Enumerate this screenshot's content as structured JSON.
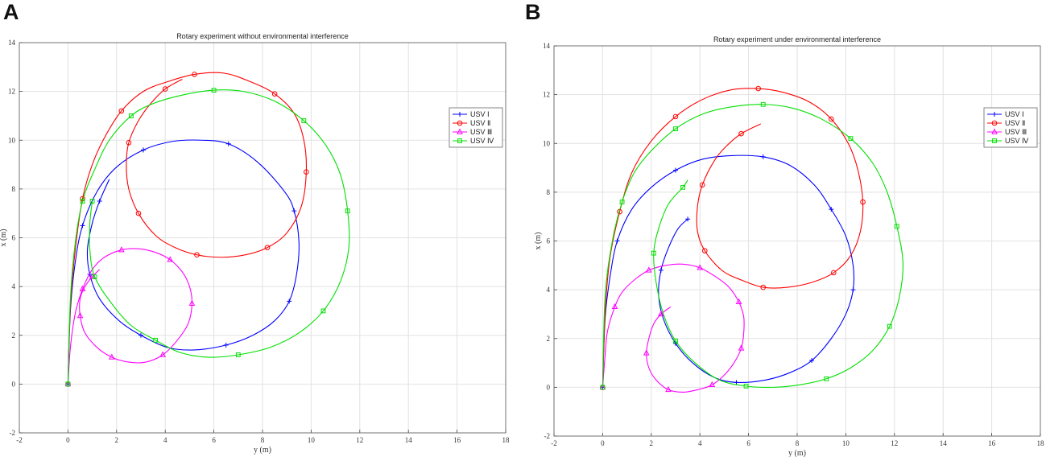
{
  "panels": [
    "A",
    "B"
  ],
  "chart_data": [
    {
      "type": "line",
      "title": "Rotary experiment without environmental interference",
      "xlabel": "y (m)",
      "ylabel": "x (m)",
      "xlim": [
        -2,
        18
      ],
      "ylim": [
        -2,
        14
      ],
      "xticks": [
        "-2",
        "0",
        "2",
        "4",
        "6",
        "8",
        "10",
        "12",
        "14",
        "16",
        "18"
      ],
      "yticks": [
        "-2",
        "0",
        "2",
        "4",
        "6",
        "8",
        "10",
        "12",
        "14"
      ],
      "grid": true,
      "legend_position": "right",
      "series": [
        {
          "name": "USV Ⅰ",
          "color": "#0000ff",
          "marker": "plus",
          "values": [
            [
              0,
              0
            ],
            [
              0.1,
              3
            ],
            [
              0.3,
              5
            ],
            [
              0.6,
              6.5
            ],
            [
              1.2,
              7.9
            ],
            [
              2,
              8.9
            ],
            [
              3.1,
              9.6
            ],
            [
              4.3,
              9.95
            ],
            [
              5.5,
              10
            ],
            [
              6.6,
              9.85
            ],
            [
              7.8,
              9.1
            ],
            [
              8.9,
              7.9
            ],
            [
              9.3,
              7.1
            ],
            [
              9.5,
              5.8
            ],
            [
              9.4,
              4.5
            ],
            [
              9.1,
              3.4
            ],
            [
              8.5,
              2.6
            ],
            [
              7.6,
              2
            ],
            [
              6.5,
              1.6
            ],
            [
              5.2,
              1.4
            ],
            [
              4.1,
              1.5
            ],
            [
              3,
              2
            ],
            [
              2.1,
              2.6
            ],
            [
              1.3,
              3.5
            ],
            [
              0.9,
              4.5
            ],
            [
              0.8,
              5.5
            ],
            [
              1,
              6.6
            ],
            [
              1.3,
              7.5
            ],
            [
              1.7,
              8.4
            ]
          ]
        },
        {
          "name": "USV Ⅱ",
          "color": "#ff0000",
          "marker": "circle",
          "values": [
            [
              0,
              0
            ],
            [
              0.1,
              3.2
            ],
            [
              0.3,
              5.5
            ],
            [
              0.6,
              7.6
            ],
            [
              1,
              9
            ],
            [
              1.5,
              10.1
            ],
            [
              2.2,
              11.2
            ],
            [
              3.1,
              12
            ],
            [
              4.1,
              12.4
            ],
            [
              5.2,
              12.7
            ],
            [
              6.4,
              12.75
            ],
            [
              7.5,
              12.4
            ],
            [
              8.5,
              11.9
            ],
            [
              9.3,
              11.1
            ],
            [
              9.7,
              10
            ],
            [
              9.8,
              8.7
            ],
            [
              9.6,
              7.3
            ],
            [
              9,
              6.2
            ],
            [
              8.2,
              5.6
            ],
            [
              7.3,
              5.3
            ],
            [
              6.3,
              5.2
            ],
            [
              5.3,
              5.3
            ],
            [
              4.4,
              5.6
            ],
            [
              3.6,
              6.1
            ],
            [
              2.9,
              7
            ],
            [
              2.5,
              8
            ],
            [
              2.4,
              9
            ],
            [
              2.5,
              9.9
            ],
            [
              2.9,
              10.8
            ],
            [
              3.4,
              11.5
            ],
            [
              4,
              12.1
            ],
            [
              4.7,
              12.5
            ]
          ]
        },
        {
          "name": "USV Ⅲ",
          "color": "#ff00ff",
          "marker": "triangle",
          "values": [
            [
              0,
              0
            ],
            [
              0.1,
              1.5
            ],
            [
              0.3,
              2.9
            ],
            [
              0.6,
              3.9
            ],
            [
              1,
              4.7
            ],
            [
              1.5,
              5.2
            ],
            [
              2.2,
              5.5
            ],
            [
              2.9,
              5.55
            ],
            [
              3.6,
              5.4
            ],
            [
              4.2,
              5.1
            ],
            [
              4.7,
              4.6
            ],
            [
              5,
              4
            ],
            [
              5.1,
              3.3
            ],
            [
              4.95,
              2.5
            ],
            [
              4.5,
              1.8
            ],
            [
              3.9,
              1.2
            ],
            [
              3.2,
              0.9
            ],
            [
              2.5,
              0.9
            ],
            [
              1.8,
              1.1
            ],
            [
              1.2,
              1.5
            ],
            [
              0.7,
              2.1
            ],
            [
              0.5,
              2.8
            ],
            [
              0.5,
              3.5
            ],
            [
              0.7,
              4
            ],
            [
              1,
              4.4
            ],
            [
              1.3,
              4.7
            ]
          ]
        },
        {
          "name": "USV Ⅳ",
          "color": "#00e000",
          "marker": "square",
          "values": [
            [
              0,
              0
            ],
            [
              0.1,
              3.5
            ],
            [
              0.3,
              5.8
            ],
            [
              0.6,
              7.5
            ],
            [
              1.1,
              8.8
            ],
            [
              1.7,
              10
            ],
            [
              2.6,
              11
            ],
            [
              3.5,
              11.5
            ],
            [
              4.7,
              11.85
            ],
            [
              6,
              12.05
            ],
            [
              7.2,
              12
            ],
            [
              8.5,
              11.6
            ],
            [
              9.7,
              10.8
            ],
            [
              10.6,
              9.8
            ],
            [
              11.2,
              8.6
            ],
            [
              11.5,
              7.1
            ],
            [
              11.55,
              5.6
            ],
            [
              11.2,
              4.2
            ],
            [
              10.5,
              3
            ],
            [
              9.5,
              2.1
            ],
            [
              8.3,
              1.5
            ],
            [
              7,
              1.2
            ],
            [
              5.8,
              1.1
            ],
            [
              4.6,
              1.3
            ],
            [
              3.6,
              1.8
            ],
            [
              2.6,
              2.4
            ],
            [
              1.8,
              3.3
            ],
            [
              1.1,
              4.4
            ],
            [
              0.9,
              5.5
            ],
            [
              0.9,
              6.6
            ],
            [
              1,
              7.5
            ]
          ]
        }
      ]
    },
    {
      "type": "line",
      "title": "Rotary experiment under environmental interference",
      "xlabel": "y (m)",
      "ylabel": "x (m)",
      "xlim": [
        -2,
        18
      ],
      "ylim": [
        -2,
        14
      ],
      "xticks": [
        "-2",
        "0",
        "2",
        "4",
        "6",
        "8",
        "10",
        "12",
        "14",
        "16",
        "18"
      ],
      "yticks": [
        "-2",
        "0",
        "2",
        "4",
        "6",
        "8",
        "10",
        "12",
        "14"
      ],
      "grid": true,
      "legend_position": "right",
      "series": [
        {
          "name": "USV Ⅰ",
          "color": "#0000ff",
          "marker": "plus",
          "values": [
            [
              0,
              0
            ],
            [
              0.1,
              2.8
            ],
            [
              0.3,
              4.5
            ],
            [
              0.6,
              6
            ],
            [
              1.2,
              7.3
            ],
            [
              2,
              8.2
            ],
            [
              3,
              8.9
            ],
            [
              4.1,
              9.35
            ],
            [
              5.3,
              9.5
            ],
            [
              6.6,
              9.45
            ],
            [
              7.7,
              9.1
            ],
            [
              8.7,
              8.3
            ],
            [
              9.4,
              7.3
            ],
            [
              10,
              6.2
            ],
            [
              10.3,
              5
            ],
            [
              10.3,
              4
            ],
            [
              10,
              3
            ],
            [
              9.4,
              2
            ],
            [
              8.6,
              1.1
            ],
            [
              7.7,
              0.6
            ],
            [
              6.7,
              0.3
            ],
            [
              5.5,
              0.2
            ],
            [
              4.6,
              0.4
            ],
            [
              3.7,
              1
            ],
            [
              3,
              1.8
            ],
            [
              2.5,
              2.8
            ],
            [
              2.3,
              3.8
            ],
            [
              2.4,
              4.8
            ],
            [
              2.7,
              5.7
            ],
            [
              3.1,
              6.5
            ],
            [
              3.5,
              6.9
            ]
          ]
        },
        {
          "name": "USV Ⅱ",
          "color": "#ff0000",
          "marker": "circle",
          "values": [
            [
              0,
              0
            ],
            [
              0.1,
              3
            ],
            [
              0.3,
              5.3
            ],
            [
              0.7,
              7.2
            ],
            [
              1.2,
              8.8
            ],
            [
              2,
              10.1
            ],
            [
              3,
              11.1
            ],
            [
              4.1,
              11.8
            ],
            [
              5.3,
              12.2
            ],
            [
              6.4,
              12.25
            ],
            [
              7.4,
              12.1
            ],
            [
              8.5,
              11.7
            ],
            [
              9.4,
              11
            ],
            [
              10.1,
              10
            ],
            [
              10.5,
              8.9
            ],
            [
              10.7,
              7.6
            ],
            [
              10.6,
              6.4
            ],
            [
              10.2,
              5.4
            ],
            [
              9.5,
              4.7
            ],
            [
              8.6,
              4.3
            ],
            [
              7.6,
              4.1
            ],
            [
              6.6,
              4.1
            ],
            [
              5.7,
              4.4
            ],
            [
              4.9,
              4.8
            ],
            [
              4.2,
              5.6
            ],
            [
              3.9,
              6.4
            ],
            [
              3.9,
              7.4
            ],
            [
              4.1,
              8.3
            ],
            [
              4.6,
              9.3
            ],
            [
              5.1,
              9.9
            ],
            [
              5.7,
              10.4
            ],
            [
              6.5,
              10.8
            ]
          ]
        },
        {
          "name": "USV Ⅲ",
          "color": "#ff00ff",
          "marker": "triangle",
          "values": [
            [
              0,
              0
            ],
            [
              0.1,
              1.3
            ],
            [
              0.2,
              2.3
            ],
            [
              0.5,
              3.3
            ],
            [
              0.8,
              3.9
            ],
            [
              1.3,
              4.4
            ],
            [
              1.9,
              4.8
            ],
            [
              2.6,
              5
            ],
            [
              3.3,
              5.05
            ],
            [
              4,
              4.9
            ],
            [
              4.7,
              4.5
            ],
            [
              5.2,
              4.1
            ],
            [
              5.6,
              3.5
            ],
            [
              5.8,
              2.9
            ],
            [
              5.8,
              2.2
            ],
            [
              5.7,
              1.6
            ],
            [
              5.4,
              1
            ],
            [
              5,
              0.5
            ],
            [
              4.5,
              0.1
            ],
            [
              3.9,
              -0.1
            ],
            [
              3.3,
              -0.2
            ],
            [
              2.7,
              -0.1
            ],
            [
              2.2,
              0.3
            ],
            [
              1.9,
              0.8
            ],
            [
              1.8,
              1.4
            ],
            [
              1.9,
              2
            ],
            [
              2.1,
              2.6
            ],
            [
              2.4,
              3
            ],
            [
              2.8,
              3.3
            ]
          ]
        },
        {
          "name": "USV Ⅳ",
          "color": "#00e000",
          "marker": "square",
          "values": [
            [
              0,
              0
            ],
            [
              0.1,
              3.7
            ],
            [
              0.4,
              6
            ],
            [
              0.8,
              7.6
            ],
            [
              1.3,
              8.8
            ],
            [
              2,
              9.7
            ],
            [
              3,
              10.6
            ],
            [
              4.1,
              11.2
            ],
            [
              5.3,
              11.5
            ],
            [
              6.6,
              11.6
            ],
            [
              7.8,
              11.45
            ],
            [
              9,
              11
            ],
            [
              10.2,
              10.2
            ],
            [
              11.1,
              9.2
            ],
            [
              11.7,
              8
            ],
            [
              12.1,
              6.6
            ],
            [
              12.35,
              5.1
            ],
            [
              12.2,
              3.7
            ],
            [
              11.8,
              2.5
            ],
            [
              11.1,
              1.5
            ],
            [
              10.2,
              0.8
            ],
            [
              9.2,
              0.35
            ],
            [
              8.1,
              0.1
            ],
            [
              7,
              0
            ],
            [
              5.9,
              0.05
            ],
            [
              4.8,
              0.3
            ],
            [
              3.8,
              1
            ],
            [
              3,
              1.9
            ],
            [
              2.5,
              3
            ],
            [
              2.2,
              4.3
            ],
            [
              2.1,
              5.5
            ],
            [
              2.3,
              6.5
            ],
            [
              2.7,
              7.5
            ],
            [
              3.3,
              8.2
            ],
            [
              3.5,
              8.5
            ]
          ]
        }
      ]
    }
  ]
}
